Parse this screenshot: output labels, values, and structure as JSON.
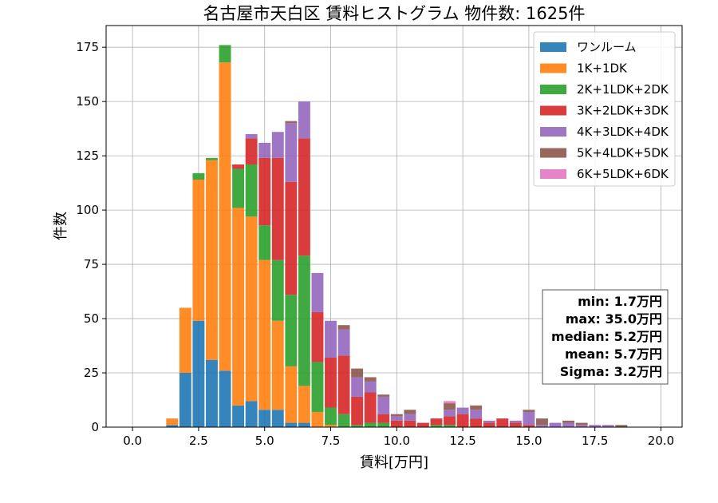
{
  "chart_data": {
    "type": "bar",
    "stacked": true,
    "title": "名古屋市天白区 賃料ヒストグラム 物件数: 1625件",
    "xlabel": "賃料[万円]",
    "ylabel": "件数",
    "xlim": [
      -1.0,
      20.8
    ],
    "ylim": [
      0,
      185
    ],
    "xticks": [
      0.0,
      2.5,
      5.0,
      7.5,
      10.0,
      12.5,
      15.0,
      17.5,
      20.0
    ],
    "xtick_labels": [
      "0.0",
      "2.5",
      "5.0",
      "7.5",
      "10.0",
      "12.5",
      "15.0",
      "17.5",
      "20.0"
    ],
    "yticks": [
      0,
      25,
      50,
      75,
      100,
      125,
      150,
      175
    ],
    "ytick_labels": [
      "0",
      "25",
      "50",
      "75",
      "100",
      "125",
      "150",
      "175"
    ],
    "grid": true,
    "legend_position": "top-right",
    "bin_width": 0.5,
    "x": [
      1.5,
      2.0,
      2.5,
      3.0,
      3.5,
      4.0,
      4.5,
      5.0,
      5.5,
      6.0,
      6.5,
      7.0,
      7.5,
      8.0,
      8.5,
      9.0,
      9.5,
      10.0,
      10.5,
      11.0,
      11.5,
      12.0,
      12.5,
      13.0,
      13.5,
      14.0,
      14.5,
      15.0,
      15.5,
      16.0,
      16.5,
      17.0,
      17.5,
      18.0,
      18.5
    ],
    "series": [
      {
        "name": "ワンルーム",
        "color": "#1f77b4",
        "values": [
          1,
          25,
          49,
          31,
          26,
          10,
          12,
          8,
          8,
          2,
          2,
          0,
          0,
          0,
          0,
          0,
          0,
          0,
          0,
          0,
          0,
          0,
          0,
          0,
          0,
          0,
          0,
          0,
          0,
          0,
          0,
          0,
          0,
          0,
          0
        ]
      },
      {
        "name": "1K+1DK",
        "color": "#ff7f0e",
        "values": [
          3,
          30,
          65,
          92,
          142,
          91,
          85,
          69,
          41,
          26,
          17,
          7,
          1,
          0,
          0,
          0,
          0,
          0,
          0,
          0,
          0,
          0,
          0,
          0,
          0,
          0,
          0,
          0,
          0,
          0,
          0,
          0,
          0,
          0,
          0
        ]
      },
      {
        "name": "2K+1LDK+2DK",
        "color": "#2ca02c",
        "values": [
          0,
          0,
          3,
          1,
          8,
          18,
          24,
          16,
          28,
          33,
          60,
          23,
          8,
          6,
          1,
          2,
          2,
          0,
          0,
          0,
          1,
          1,
          0,
          0,
          0,
          0,
          0,
          0,
          0,
          0,
          0,
          0,
          0,
          0,
          0
        ]
      },
      {
        "name": "3K+2LDK+3DK",
        "color": "#d62728",
        "values": [
          0,
          0,
          0,
          0,
          0,
          2,
          12,
          31,
          47,
          52,
          54,
          23,
          23,
          27,
          13,
          14,
          4,
          3,
          3,
          2,
          3,
          4,
          6,
          4,
          2,
          4,
          2,
          1,
          0,
          0,
          0,
          0,
          0,
          0,
          0
        ]
      },
      {
        "name": "4K+3LDK+4DK",
        "color": "#9467bd",
        "values": [
          0,
          0,
          0,
          0,
          0,
          0,
          2,
          7,
          12,
          27,
          17,
          18,
          17,
          12,
          9,
          5,
          8,
          2,
          3,
          0,
          0,
          3,
          3,
          4,
          1,
          0,
          1,
          6,
          1,
          2,
          2,
          1,
          1,
          1,
          0
        ]
      },
      {
        "name": "5K+4LDK+5DK",
        "color": "#8c564b",
        "values": [
          0,
          0,
          0,
          0,
          0,
          0,
          0,
          0,
          0,
          1,
          0,
          0,
          0,
          2,
          4,
          2,
          1,
          1,
          2,
          0,
          0,
          3,
          0,
          2,
          0,
          0,
          0,
          1,
          3,
          0,
          1,
          1,
          0,
          0,
          1
        ]
      },
      {
        "name": "6K+5LDK+6DK",
        "color": "#e377c2",
        "values": [
          0,
          0,
          0,
          0,
          0,
          0,
          0,
          0,
          0,
          0,
          0,
          0,
          0,
          0,
          0,
          0,
          0,
          0,
          0,
          0,
          0,
          1,
          0,
          0,
          0,
          0,
          0,
          0,
          0,
          0,
          0,
          0,
          0,
          0,
          0
        ]
      }
    ],
    "stats_box": [
      "min: 1.7万円",
      "max: 35.0万円",
      "median: 5.2万円",
      "mean: 5.7万円",
      "Sigma: 3.2万円"
    ]
  }
}
